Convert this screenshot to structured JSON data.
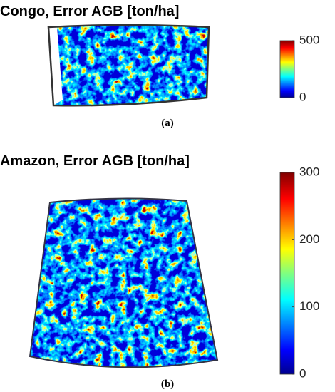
{
  "panels": [
    {
      "title": "Congo, Error AGB [ton/ha]",
      "colorbar": {
        "lim": [
          0,
          500
        ],
        "ticks": [
          0,
          500
        ]
      },
      "caption": "(a)"
    },
    {
      "title": "Amazon, Error AGB [ton/ha]",
      "colorbar": {
        "lim": [
          0,
          300
        ],
        "ticks": [
          0,
          100,
          200,
          300
        ]
      },
      "caption": "(b)"
    }
  ]
}
